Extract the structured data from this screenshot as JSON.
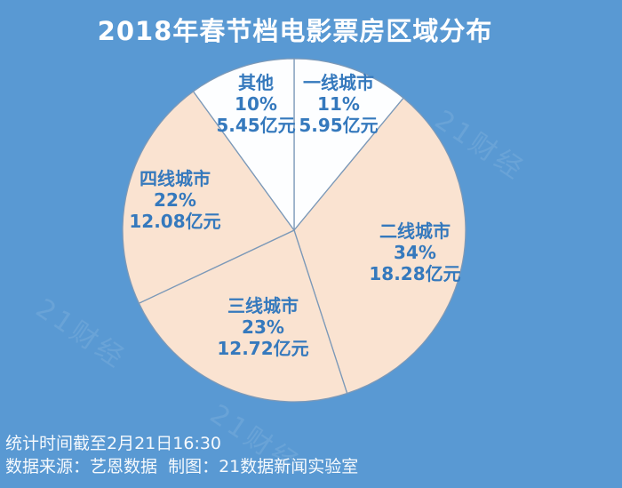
{
  "header": {
    "title": "2018年春节档电影票房区域分布"
  },
  "chart_data": {
    "type": "pie",
    "title": "2018年春节档电影票房区域分布",
    "unit": "亿元",
    "direction": "clockwise",
    "start_angle_deg": 0,
    "legend": "none",
    "labels_inside_slices": true,
    "slices": [
      {
        "name": "一线城市",
        "value": 11,
        "amount": 5.95,
        "percent_label": "11%",
        "value_label": "5.95亿元",
        "color": "#fdfeff"
      },
      {
        "name": "二线城市",
        "value": 34,
        "amount": 18.28,
        "percent_label": "34%",
        "value_label": "18.28亿元",
        "color": "#fae3d1"
      },
      {
        "name": "三线城市",
        "value": 23,
        "amount": 12.72,
        "percent_label": "23%",
        "value_label": "12.72亿元",
        "color": "#fae3d1"
      },
      {
        "name": "四线城市",
        "value": 22,
        "amount": 12.08,
        "percent_label": "22%",
        "value_label": "12.08亿元",
        "color": "#fae3d1"
      },
      {
        "name": "其他",
        "value": 10,
        "amount": 5.45,
        "percent_label": "10%",
        "value_label": "5.45亿元",
        "color": "#fdfeff"
      }
    ],
    "stroke_color": "#7c99b8",
    "label_text_color": "#3579bd"
  },
  "footer": {
    "stat_time": "统计时间截至2月21日16:30",
    "source_credit": "数据来源：艺恩数据  制图：21数据新闻实验室"
  },
  "watermark": {
    "text": "21财经"
  },
  "colors": {
    "background": "#5999d3",
    "title_text": "#ffffff",
    "footer_text": "#ffffff",
    "slice_peach": "#fae3d1",
    "slice_white": "#fdfeff",
    "slice_stroke": "#7c99b8",
    "label_text": "#3579bd"
  }
}
